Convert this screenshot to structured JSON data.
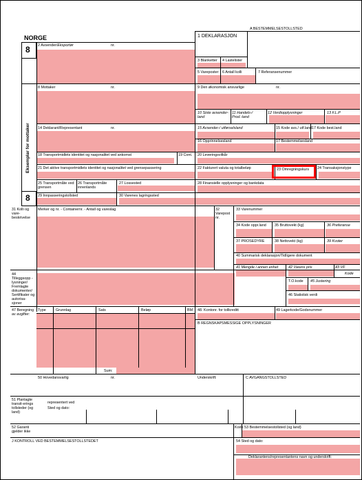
{
  "header": {
    "country": "NORGE",
    "copy_number_top": "8",
    "copy_number_bottom": "8",
    "side_label": "Eksemplar for mottaker",
    "a_label": "A BESTEMMELSESTOLLSTED",
    "declaration": "1 DEKLARASJON"
  },
  "fields": {
    "f2": "2 Avsender/",
    "f2_italic": "Eksportør",
    "nr": "nr.",
    "f3": "3 Blanketter",
    "f4": "4 Lastelister",
    "f5": "5 Vareposter",
    "f6": "6 Antall kolli",
    "f7": "7 Referansenummer",
    "f8": "8 Mottaker",
    "f9": "9 Den økonomisk ansvarlige",
    "f10": "10 Siste avsender-land",
    "f11": "11 Handels-/ Prod.-land",
    "f12": "12 Verdiopplysninger",
    "f13": "13 F.L.P",
    "f14": "14 Deklarant/Representant",
    "f15": "15 Avsender-/ utførselsland",
    "f15a": "15 Kode avs./ utf.land",
    "f17a": "17 Kode best.land",
    "f16": "16 Opprinnelsesland",
    "f17": "17 Bestemmelsesland",
    "f18": "18 Transportmidlets identitet og nasjonalitet ved ankomst",
    "f19": "19 Cont.",
    "f20": "20 Leveringsvilkår",
    "f21": "21 Det aktive transportmidlets identitet og nasjonalitet ved grensepassering",
    "f22": "22 Fakturert valuta og totalbeløp",
    "f23": "23 Omregningskurs",
    "f24": "24 Transaksjonstype",
    "f25": "25 Transportmåte ved grensen",
    "f26": "26 Transportmåte innenlands",
    "f27": "27 Lossested",
    "f28": "28 Finansielle opplysninger og bankdata",
    "f29": "29 Innpasseringstollsted",
    "f30": "30 Varenes lagringssted",
    "f31_label": "31 Kolli og vare-beskrivelse",
    "f31": "Merker og nr. - Containernr. - Antall og vareslag",
    "f32": "32 Varepost nr.",
    "f33": "33 Varenummer",
    "f34": "34 Kode oppr.land",
    "f35": "35 Bruttovekt (kg)",
    "f36": "36 Preferanse",
    "f37": "37 PROSEDYRE",
    "f38": "38 Nettovekt (kg)",
    "f39": "39 Kvoter",
    "f40": "40 Summarisk deklarasjon/Tidligere dokument",
    "f41": "41 Mengde i annen enhet",
    "f42": "42 Varens pris",
    "f43": "43 VF",
    "f43b": "Kode",
    "f44_label": "44 Tilleggsopp -lysninger/ Fremlagte dokumenter/ Sertifikater og autorisa-sjoner",
    "tokode": "T.O.kode",
    "f45": "45 Justering",
    "f46": "46 Statistisk verdi",
    "f47_label": "47 Beregning av avgifter:",
    "col_type": "Type",
    "col_grunnlag": "Grunnlag",
    "col_sats": "Sats",
    "col_belop": "Beløp",
    "col_bm": "BM",
    "f48": "48. Kontonr. for tollkreditt",
    "f49": "49 Lagerkode/Godsnummer",
    "b_label": "B REGNSKAPSMESSIGE OPPLYSNINGER",
    "sum": "Sum:",
    "f50": "50 Hovedansvarlig",
    "underskrift": "Underskrift:",
    "c_label": "C AVGANGSTOLLSTED",
    "f51_label": "51 Planlagte transit-erings tollsteder (og land)",
    "represented": "representert ved",
    "place_date": "Sted og dato:",
    "f52": "52 Garanti gjelder ikke",
    "kode": "Kode",
    "f53": "53 Bestemmelsestollsted (og land)",
    "j_label": "J KONTROLL VED BESTEMMELSESTOLLSTEDET",
    "f54": "54 Sted og dato:",
    "f54b": "Deklarantens/representantens navn og underskrift:"
  },
  "highlight_color": "#ff0000",
  "fill_color": "#f4a6a6"
}
